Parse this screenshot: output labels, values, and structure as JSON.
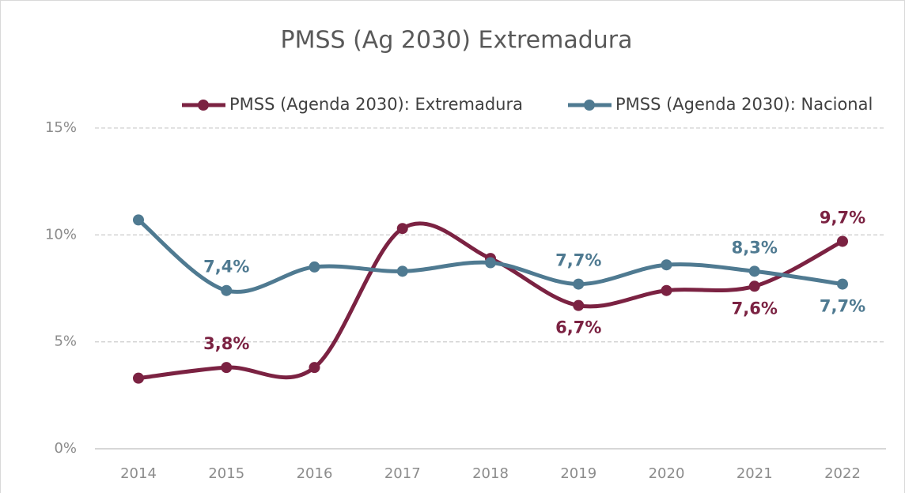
{
  "chart_data": {
    "type": "line",
    "title": "PMSS (Ag 2030) Extremadura",
    "categories": [
      "2014",
      "2015",
      "2016",
      "2017",
      "2018",
      "2019",
      "2020",
      "2021",
      "2022"
    ],
    "series": [
      {
        "name": "PMSS (Agenda 2030): Extremadura",
        "color": "#7b2242",
        "values": [
          3.3,
          3.8,
          3.8,
          10.3,
          8.9,
          6.7,
          7.4,
          7.6,
          9.7
        ],
        "value_labels": [
          null,
          "3,8%",
          null,
          null,
          null,
          "6,7%",
          null,
          "7,6%",
          "9,7%"
        ]
      },
      {
        "name": "PMSS (Agenda 2030): Nacional",
        "color": "#4f7a91",
        "values": [
          10.7,
          7.4,
          8.5,
          8.3,
          8.7,
          7.7,
          8.6,
          8.3,
          7.7
        ],
        "value_labels": [
          null,
          "7,4%",
          null,
          null,
          null,
          "7,7%",
          null,
          "8,3%",
          "7,7%"
        ]
      }
    ],
    "ylim": [
      0,
      15
    ],
    "yticks": [
      {
        "value": 0,
        "label": "0%"
      },
      {
        "value": 5,
        "label": "5%"
      },
      {
        "value": 10,
        "label": "10%"
      },
      {
        "value": 15,
        "label": "15%"
      }
    ],
    "grid": true,
    "legend": "top"
  }
}
